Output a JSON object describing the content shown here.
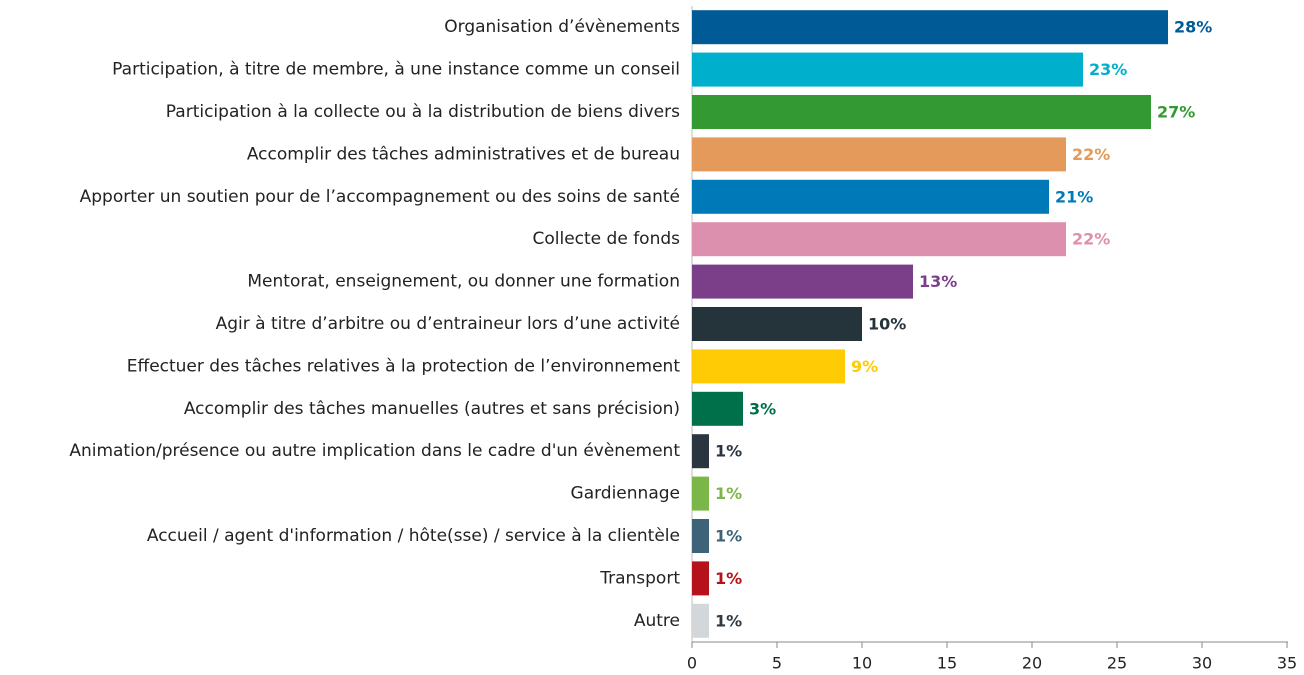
{
  "chart_data": {
    "type": "barh",
    "categories": [
      "Organisation d’évènements",
      "Participation, à titre de membre, à une instance comme un conseil",
      "Participation à la collecte ou à la distribution de biens divers",
      "Accomplir des tâches administratives et de bureau",
      "Apporter un soutien pour de l’accompagnement ou des soins de santé",
      "Collecte de fonds",
      "Mentorat, enseignement, ou donner une formation",
      "Agir à titre d’arbitre ou d’entraineur lors d’une activité",
      "Effectuer des tâches relatives à la protection de l’environnement",
      "Accomplir des tâches manuelles (autres et sans précision)",
      "Animation/présence ou autre implication dans le cadre d'un évènement",
      "Gardiennage",
      "Accueil / agent d'information / hôte(sse) / service à la clientèle",
      "Transport",
      "Autre"
    ],
    "values": [
      28,
      23,
      27,
      22,
      21,
      22,
      13,
      10,
      9,
      3,
      1,
      1,
      1,
      1,
      1
    ],
    "value_labels": [
      "28%",
      "23%",
      "27%",
      "22%",
      "21%",
      "22%",
      "13%",
      "10%",
      "9%",
      "3%",
      "1%",
      "1%",
      "1%",
      "1%",
      "1%"
    ],
    "colors": [
      "#005a96",
      "#00afcb",
      "#339933",
      "#e39a5b",
      "#0079b9",
      "#dc90ad",
      "#7b3f8a",
      "#25333b",
      "#ffcb05",
      "#00704a",
      "#2a3540",
      "#7ab648",
      "#3e6278",
      "#b5121b",
      "#d4d7d9"
    ],
    "label_colors": [
      "#005a96",
      "#00afcb",
      "#339933",
      "#e39a5b",
      "#0079b9",
      "#dc90ad",
      "#7b3f8a",
      "#25333b",
      "#ffcb05",
      "#00704a",
      "#2a3540",
      "#7ab648",
      "#3e6278",
      "#b5121b",
      "#2e3a44"
    ],
    "xlim": [
      0,
      35
    ],
    "xticks": [
      0,
      5,
      10,
      15,
      20,
      25,
      30,
      35
    ]
  }
}
